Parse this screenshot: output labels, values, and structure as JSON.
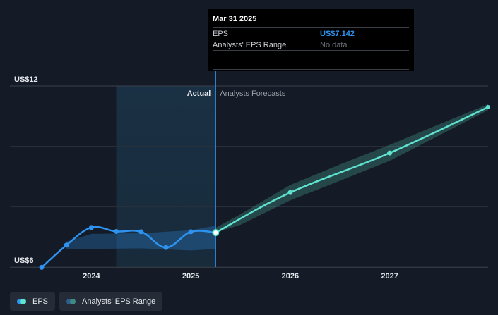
{
  "chart_data": {
    "type": "line",
    "yaxis_labels": [
      {
        "label": "US$12",
        "value": 12
      },
      {
        "label": "US$6",
        "value": 6
      }
    ],
    "ylim": [
      6,
      12
    ],
    "xaxis_ticks": [
      {
        "label": "2024",
        "x": 2024.0
      },
      {
        "label": "2025",
        "x": 2025.0
      },
      {
        "label": "2026",
        "x": 2026.0
      },
      {
        "label": "2027",
        "x": 2027.0
      }
    ],
    "xlim": [
      2023.18,
      2027.99
    ],
    "shaded_period": {
      "start": 2024.25,
      "end": 2025.25
    },
    "divider_x": 2025.25,
    "region_labels": {
      "actual": "Actual",
      "forecast": "Analysts Forecasts"
    },
    "series": [
      {
        "name": "EPS",
        "color": "#2e93f0",
        "points": [
          {
            "x": 2023.5,
            "y": 5.99
          },
          {
            "x": 2023.75,
            "y": 6.73
          },
          {
            "x": 2024.0,
            "y": 7.31
          },
          {
            "x": 2024.25,
            "y": 7.18
          },
          {
            "x": 2024.5,
            "y": 7.17
          },
          {
            "x": 2024.75,
            "y": 6.65
          },
          {
            "x": 2025.0,
            "y": 7.17
          },
          {
            "x": 2025.25,
            "y": 7.142
          }
        ]
      },
      {
        "name": "EPS Forecast",
        "color": "#5fe3cf",
        "points": [
          {
            "x": 2025.25,
            "y": 7.142
          },
          {
            "x": 2026.0,
            "y": 8.47
          },
          {
            "x": 2027.0,
            "y": 9.78
          },
          {
            "x": 2027.99,
            "y": 11.3
          }
        ]
      }
    ],
    "range_actual": {
      "color": "#2e93f0",
      "upper": [
        {
          "x": 2023.75,
          "y": 6.85
        },
        {
          "x": 2024.0,
          "y": 7.1
        },
        {
          "x": 2024.5,
          "y": 7.12
        },
        {
          "x": 2025.0,
          "y": 7.22
        },
        {
          "x": 2025.25,
          "y": 7.37
        }
      ],
      "lower": [
        {
          "x": 2025.25,
          "y": 6.6
        },
        {
          "x": 2025.0,
          "y": 6.55
        },
        {
          "x": 2024.5,
          "y": 6.62
        },
        {
          "x": 2024.0,
          "y": 6.6
        },
        {
          "x": 2023.75,
          "y": 6.6
        }
      ]
    },
    "range_forecast": {
      "color": "#5fe3cf",
      "upper": [
        {
          "x": 2025.25,
          "y": 7.3
        },
        {
          "x": 2025.5,
          "y": 7.75
        },
        {
          "x": 2026.0,
          "y": 8.72
        },
        {
          "x": 2026.5,
          "y": 9.4
        },
        {
          "x": 2027.0,
          "y": 10.05
        },
        {
          "x": 2027.99,
          "y": 11.4
        }
      ],
      "lower": [
        {
          "x": 2027.99,
          "y": 11.2
        },
        {
          "x": 2027.0,
          "y": 9.52
        },
        {
          "x": 2026.5,
          "y": 8.86
        },
        {
          "x": 2026.0,
          "y": 8.21
        },
        {
          "x": 2025.5,
          "y": 7.4
        },
        {
          "x": 2025.25,
          "y": 7.142
        }
      ]
    }
  },
  "tooltip": {
    "date": "Mar 31 2025",
    "eps_label": "EPS",
    "eps_value": "US$7.142",
    "range_label": "Analysts' EPS Range",
    "range_value": "No data"
  },
  "legend": {
    "items": [
      {
        "label": "EPS",
        "colors": [
          "#2e93f0",
          "#5fe3cf"
        ]
      },
      {
        "label": "Analysts' EPS Range",
        "colors": [
          "#2b5f8c",
          "#3f8a84"
        ]
      }
    ]
  }
}
